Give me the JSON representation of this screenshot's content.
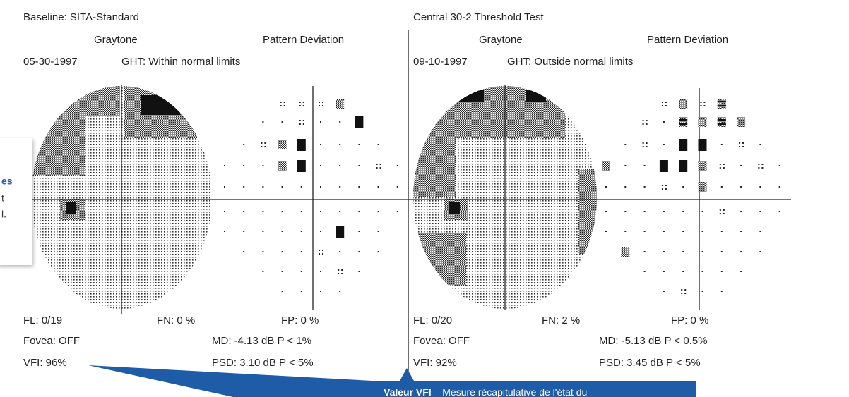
{
  "panels": [
    {
      "header": "Baseline: SITA-Standard",
      "graytone": "Graytone",
      "pattern_deviation": "Pattern Deviation",
      "date": "05-30-1997",
      "ght": "GHT: Within normal limits",
      "fl": "FL: 0/19",
      "fn": "FN: 0 %",
      "fp": "FP: 0 %",
      "fovea": "Fovea: OFF",
      "md": "MD: -4.13 dB P < 1%",
      "vfi": "VFI: 96%",
      "psd": "PSD: 3.10 dB P < 5%"
    },
    {
      "header": "Central 30-2 Threshold Test",
      "graytone": "Graytone",
      "pattern_deviation": "Pattern Deviation",
      "date": "09-10-1997",
      "ght": "GHT: Outside normal limits",
      "fl": "FL: 0/20",
      "fn": "FN: 2 %",
      "fp": "FP: 0 %",
      "fovea": "Fovea: OFF",
      "md": "MD: -5.13 dB P < 0.5%",
      "vfi": "VFI: 92%",
      "psd": "PSD: 3.45 dB P < 5%"
    }
  ],
  "callouts": {
    "left": {
      "line1": "es",
      "line2": "t",
      "line3": "l."
    },
    "bottom": {
      "bold": "Valeur VFI",
      "text": " – Mesure récapitulative de l'état du"
    }
  }
}
